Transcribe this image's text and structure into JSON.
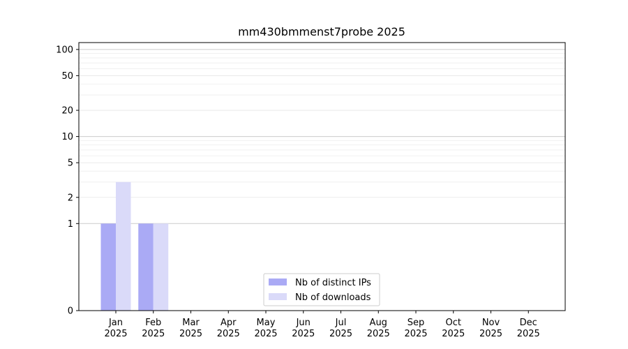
{
  "chart_data": {
    "type": "bar",
    "title": "mm430bmmenst7probe 2025",
    "xlabel": "",
    "ylabel": "",
    "categories": [
      "Jan\n2025",
      "Feb\n2025",
      "Mar\n2025",
      "Apr\n2025",
      "May\n2025",
      "Jun\n2025",
      "Jul\n2025",
      "Aug\n2025",
      "Sep\n2025",
      "Oct\n2025",
      "Nov\n2025",
      "Dec\n2025"
    ],
    "series": [
      {
        "name": "Nb of distinct IPs",
        "color": "#aaaaf5",
        "values": [
          1,
          1,
          0,
          0,
          0,
          0,
          0,
          0,
          0,
          0,
          0,
          0
        ]
      },
      {
        "name": "Nb of downloads",
        "color": "#dadaf9",
        "values": [
          3,
          1,
          0,
          0,
          0,
          0,
          0,
          0,
          0,
          0,
          0,
          0
        ]
      }
    ],
    "yscale": "symlog",
    "ylim": [
      0,
      120
    ],
    "yticks": [
      0,
      1,
      2,
      5,
      10,
      20,
      50,
      100
    ],
    "grid": true,
    "legend_position": "lower-center"
  }
}
